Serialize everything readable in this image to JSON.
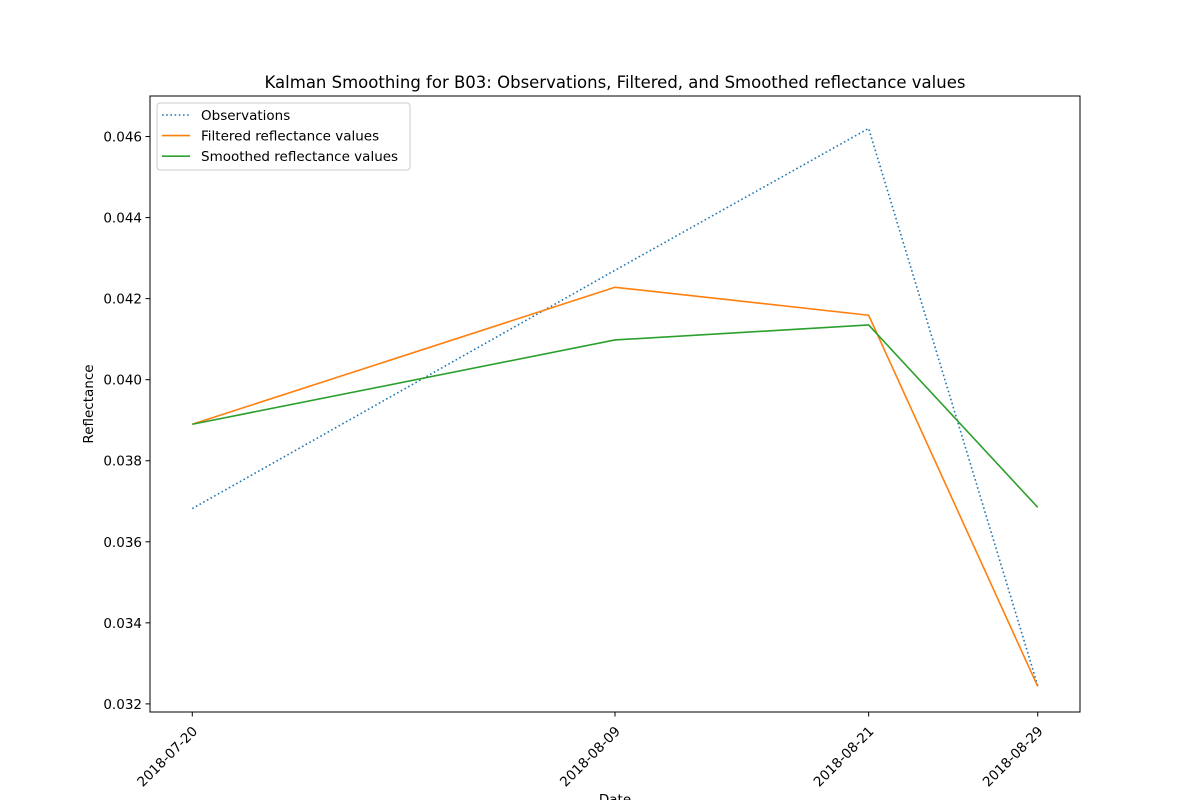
{
  "chart_data": {
    "type": "line",
    "title": "Kalman Smoothing for  B03: Observations, Filtered, and Smoothed reflectance values",
    "xlabel": "Date",
    "ylabel": "Reflectance",
    "x": [
      "2018-07-20",
      "2018-08-09",
      "2018-08-21",
      "2018-08-29"
    ],
    "ylim": [
      0.0318,
      0.047
    ],
    "yticks": [
      "0.032",
      "0.034",
      "0.036",
      "0.038",
      "0.040",
      "0.042",
      "0.044",
      "0.046"
    ],
    "legend_position": "upper-left",
    "grid": false,
    "series": [
      {
        "name": "Observations",
        "color": "#1f77b4",
        "style": "dotted",
        "values": [
          0.03682,
          0.0427,
          0.0462,
          0.03245
        ]
      },
      {
        "name": "Filtered reflectance values",
        "color": "#ff7f0e",
        "style": "solid",
        "values": [
          0.0389,
          0.04228,
          0.04159,
          0.03243
        ]
      },
      {
        "name": "Smoothed reflectance values",
        "color": "#2ca02c",
        "style": "solid",
        "values": [
          0.0389,
          0.04098,
          0.04135,
          0.03685
        ]
      }
    ]
  }
}
